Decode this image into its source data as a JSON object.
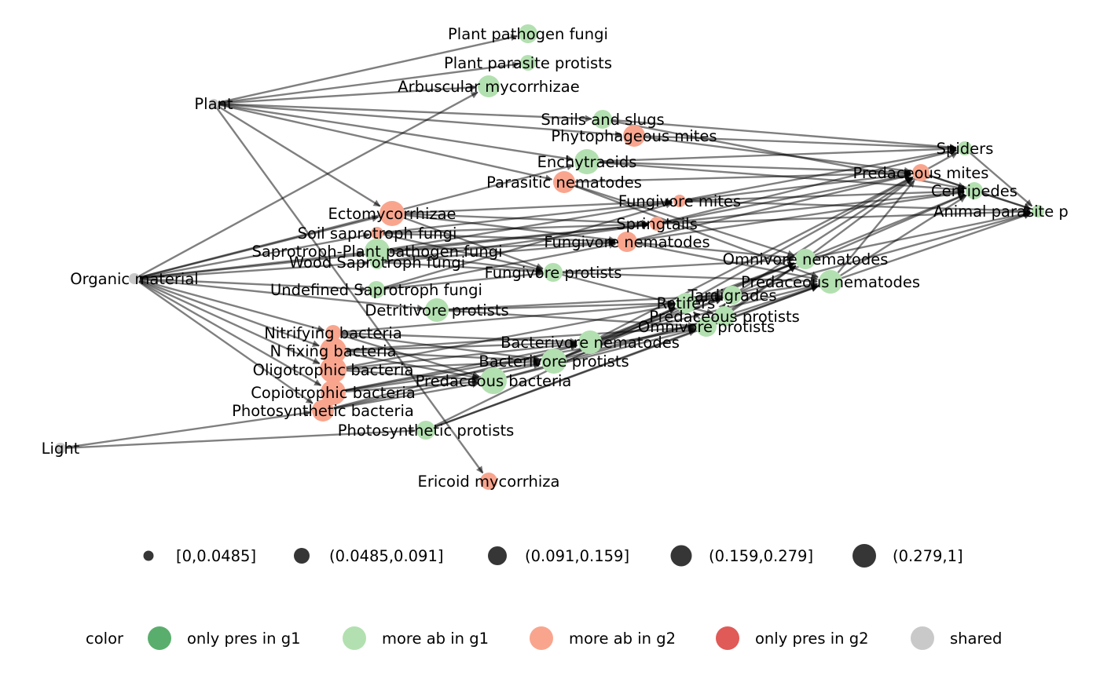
{
  "colors": {
    "edge": "#000000",
    "only_pres_g1": "#5aae6d",
    "more_ab_g1": "#b3e0b0",
    "more_ab_g2": "#f9a58e",
    "only_pres_g2": "#e05a57",
    "shared": "#c9c9c9",
    "size_legend": "#2b2b2b"
  },
  "nodes": [
    {
      "id": "plant_pathogen_fungi",
      "label": "Plant pathogen fungi",
      "group": "more_ab_g1"
    },
    {
      "id": "plant_parasite_protists",
      "label": "Plant parasite protists",
      "group": "more_ab_g1"
    },
    {
      "id": "arbuscular_mycorrhizae",
      "label": "Arbuscular mycorrhizae",
      "group": "more_ab_g1"
    },
    {
      "id": "plant",
      "label": "Plant",
      "group": "shared"
    },
    {
      "id": "snails_slugs",
      "label": "Snails and slugs",
      "group": "more_ab_g1"
    },
    {
      "id": "phytophageous_mites",
      "label": "Phytophageous mites",
      "group": "more_ab_g2"
    },
    {
      "id": "spiders",
      "label": "Spiders",
      "group": "more_ab_g1"
    },
    {
      "id": "enchytraeids",
      "label": "Enchytraeids",
      "group": "more_ab_g1"
    },
    {
      "id": "predaceous_mites",
      "label": "Predaceous mites",
      "group": "more_ab_g2"
    },
    {
      "id": "parasitic_nematodes",
      "label": "Parasitic nematodes",
      "group": "more_ab_g2"
    },
    {
      "id": "centipedes",
      "label": "Centipedes",
      "group": "more_ab_g1"
    },
    {
      "id": "fungivore_mites",
      "label": "Fungivore mites",
      "group": "more_ab_g2"
    },
    {
      "id": "animal_parasite",
      "label": "Animal parasite p",
      "group": "more_ab_g1"
    },
    {
      "id": "ectomycorrhizae",
      "label": "Ectomycorrhizae",
      "group": "more_ab_g2"
    },
    {
      "id": "springtails",
      "label": "Springtails",
      "group": "more_ab_g2"
    },
    {
      "id": "soil_saprotroph_fungi",
      "label": "Soil saprotroph fungi",
      "group": "more_ab_g2"
    },
    {
      "id": "fungivore_nematodes",
      "label": "Fungivore nematodes",
      "group": "more_ab_g2"
    },
    {
      "id": "saprotroph_plant_pathogen_fungi",
      "label": "Saprotroph-Plant pathogen fungi",
      "group": "more_ab_g1"
    },
    {
      "id": "omnivore_nematodes",
      "label": "Omnivore nematodes",
      "group": "more_ab_g1"
    },
    {
      "id": "wood_saprotroph_fungi",
      "label": "Wood Saprotroph fungi",
      "group": "more_ab_g1"
    },
    {
      "id": "fungivore_protists",
      "label": "Fungivore protists",
      "group": "more_ab_g1"
    },
    {
      "id": "organic_material",
      "label": "Organic material",
      "group": "shared"
    },
    {
      "id": "predaceous_nematodes",
      "label": "Predaceous nematodes",
      "group": "more_ab_g1"
    },
    {
      "id": "undefined_saprotroph_fungi",
      "label": "Undefined Saprotroph fungi",
      "group": "more_ab_g1"
    },
    {
      "id": "tardigrades",
      "label": "Tardigrades",
      "group": "more_ab_g1"
    },
    {
      "id": "rotifers",
      "label": "Rotifers",
      "group": "more_ab_g1"
    },
    {
      "id": "detritivore_protists",
      "label": "Detritivore protists",
      "group": "more_ab_g1"
    },
    {
      "id": "predaceous_protists",
      "label": "Predaceous protists",
      "group": "more_ab_g1"
    },
    {
      "id": "omnivore_protists",
      "label": "Omnivore protists",
      "group": "more_ab_g1"
    },
    {
      "id": "nitrifying_bacteria",
      "label": "Nitrifying bacteria",
      "group": "more_ab_g2"
    },
    {
      "id": "bacterivore_nematodes",
      "label": "Bacterivore nematodes",
      "group": "more_ab_g1"
    },
    {
      "id": "n_fixing_bacteria",
      "label": "N fixing bacteria",
      "group": "more_ab_g2"
    },
    {
      "id": "bacterivore_protists",
      "label": "Bacterivore protists",
      "group": "more_ab_g1"
    },
    {
      "id": "oligotrophic_bacteria",
      "label": "Oligotrophic bacteria",
      "group": "more_ab_g2"
    },
    {
      "id": "predaceous_bacteria",
      "label": "Predaceous bacteria",
      "group": "more_ab_g1"
    },
    {
      "id": "copiotrophic_bacteria",
      "label": "Copiotrophic bacteria",
      "group": "more_ab_g2"
    },
    {
      "id": "photosynthetic_bacteria",
      "label": "Photosynthetic bacteria",
      "group": "more_ab_g2"
    },
    {
      "id": "photosynthetic_protists",
      "label": "Photosynthetic protists",
      "group": "more_ab_g1"
    },
    {
      "id": "light",
      "label": "Light",
      "group": "shared"
    },
    {
      "id": "ericoid_mycorrhiza",
      "label": "Ericoid mycorrhiza",
      "group": "more_ab_g2"
    }
  ],
  "edges": [
    [
      "plant",
      "plant_pathogen_fungi"
    ],
    [
      "plant",
      "plant_parasite_protists"
    ],
    [
      "plant",
      "arbuscular_mycorrhizae"
    ],
    [
      "plant",
      "snails_slugs"
    ],
    [
      "plant",
      "phytophageous_mites"
    ],
    [
      "plant",
      "parasitic_nematodes"
    ],
    [
      "plant",
      "ectomycorrhizae"
    ],
    [
      "plant",
      "ericoid_mycorrhiza"
    ],
    [
      "plant",
      "enchytraeids"
    ],
    [
      "organic_material",
      "arbuscular_mycorrhizae"
    ],
    [
      "organic_material",
      "enchytraeids"
    ],
    [
      "organic_material",
      "ectomycorrhizae"
    ],
    [
      "organic_material",
      "soil_saprotroph_fungi"
    ],
    [
      "organic_material",
      "saprotroph_plant_pathogen_fungi"
    ],
    [
      "organic_material",
      "wood_saprotroph_fungi"
    ],
    [
      "organic_material",
      "undefined_saprotroph_fungi"
    ],
    [
      "organic_material",
      "detritivore_protists"
    ],
    [
      "organic_material",
      "nitrifying_bacteria"
    ],
    [
      "organic_material",
      "n_fixing_bacteria"
    ],
    [
      "organic_material",
      "oligotrophic_bacteria"
    ],
    [
      "organic_material",
      "copiotrophic_bacteria"
    ],
    [
      "organic_material",
      "photosynthetic_bacteria"
    ],
    [
      "organic_material",
      "springtails"
    ],
    [
      "light",
      "photosynthetic_bacteria"
    ],
    [
      "light",
      "photosynthetic_protists"
    ],
    [
      "ectomycorrhizae",
      "fungivore_mites"
    ],
    [
      "ectomycorrhizae",
      "springtails"
    ],
    [
      "ectomycorrhizae",
      "fungivore_nematodes"
    ],
    [
      "ectomycorrhizae",
      "fungivore_protists"
    ],
    [
      "soil_saprotroph_fungi",
      "fungivore_mites"
    ],
    [
      "soil_saprotroph_fungi",
      "springtails"
    ],
    [
      "soil_saprotroph_fungi",
      "fungivore_nematodes"
    ],
    [
      "soil_saprotroph_fungi",
      "fungivore_protists"
    ],
    [
      "saprotroph_plant_pathogen_fungi",
      "springtails"
    ],
    [
      "saprotroph_plant_pathogen_fungi",
      "fungivore_nematodes"
    ],
    [
      "saprotroph_plant_pathogen_fungi",
      "fungivore_protists"
    ],
    [
      "saprotroph_plant_pathogen_fungi",
      "fungivore_mites"
    ],
    [
      "wood_saprotroph_fungi",
      "fungivore_nematodes"
    ],
    [
      "wood_saprotroph_fungi",
      "fungivore_protists"
    ],
    [
      "wood_saprotroph_fungi",
      "springtails"
    ],
    [
      "undefined_saprotroph_fungi",
      "fungivore_nematodes"
    ],
    [
      "undefined_saprotroph_fungi",
      "fungivore_protists"
    ],
    [
      "undefined_saprotroph_fungi",
      "fungivore_mites"
    ],
    [
      "nitrifying_bacteria",
      "bacterivore_nematodes"
    ],
    [
      "nitrifying_bacteria",
      "bacterivore_protists"
    ],
    [
      "nitrifying_bacteria",
      "predaceous_bacteria"
    ],
    [
      "nitrifying_bacteria",
      "rotifers"
    ],
    [
      "n_fixing_bacteria",
      "bacterivore_nematodes"
    ],
    [
      "n_fixing_bacteria",
      "bacterivore_protists"
    ],
    [
      "n_fixing_bacteria",
      "predaceous_bacteria"
    ],
    [
      "n_fixing_bacteria",
      "omnivore_protists"
    ],
    [
      "oligotrophic_bacteria",
      "bacterivore_nematodes"
    ],
    [
      "oligotrophic_bacteria",
      "bacterivore_protists"
    ],
    [
      "oligotrophic_bacteria",
      "predaceous_bacteria"
    ],
    [
      "oligotrophic_bacteria",
      "rotifers"
    ],
    [
      "copiotrophic_bacteria",
      "bacterivore_nematodes"
    ],
    [
      "copiotrophic_bacteria",
      "bacterivore_protists"
    ],
    [
      "copiotrophic_bacteria",
      "predaceous_bacteria"
    ],
    [
      "copiotrophic_bacteria",
      "omnivore_protists"
    ],
    [
      "photosynthetic_bacteria",
      "bacterivore_nematodes"
    ],
    [
      "photosynthetic_bacteria",
      "bacterivore_protists"
    ],
    [
      "photosynthetic_bacteria",
      "predaceous_bacteria"
    ],
    [
      "photosynthetic_protists",
      "omnivore_protists"
    ],
    [
      "photosynthetic_protists",
      "rotifers"
    ],
    [
      "photosynthetic_protists",
      "predaceous_nematodes"
    ],
    [
      "detritivore_protists",
      "omnivore_protists"
    ],
    [
      "detritivore_protists",
      "rotifers"
    ],
    [
      "detritivore_protists",
      "tardigrades"
    ],
    [
      "bacterivore_nematodes",
      "predaceous_nematodes"
    ],
    [
      "bacterivore_nematodes",
      "omnivore_nematodes"
    ],
    [
      "bacterivore_nematodes",
      "predaceous_mites"
    ],
    [
      "bacterivore_nematodes",
      "tardigrades"
    ],
    [
      "bacterivore_protists",
      "rotifers"
    ],
    [
      "bacterivore_protists",
      "tardigrades"
    ],
    [
      "bacterivore_protists",
      "omnivore_nematodes"
    ],
    [
      "bacterivore_protists",
      "predaceous_protists"
    ],
    [
      "predaceous_bacteria",
      "predaceous_protists"
    ],
    [
      "predaceous_bacteria",
      "omnivore_protists"
    ],
    [
      "fungivore_protists",
      "omnivore_nematodes"
    ],
    [
      "fungivore_protists",
      "predaceous_nematodes"
    ],
    [
      "fungivore_protists",
      "predaceous_protists"
    ],
    [
      "fungivore_nematodes",
      "predaceous_mites"
    ],
    [
      "fungivore_nematodes",
      "omnivore_nematodes"
    ],
    [
      "fungivore_nematodes",
      "predaceous_nematodes"
    ],
    [
      "fungivore_nematodes",
      "centipedes"
    ],
    [
      "springtails",
      "predaceous_mites"
    ],
    [
      "springtails",
      "spiders"
    ],
    [
      "springtails",
      "centipedes"
    ],
    [
      "fungivore_mites",
      "predaceous_mites"
    ],
    [
      "fungivore_mites",
      "centipedes"
    ],
    [
      "fungivore_mites",
      "spiders"
    ],
    [
      "enchytraeids",
      "predaceous_mites"
    ],
    [
      "enchytraeids",
      "centipedes"
    ],
    [
      "enchytraeids",
      "spiders"
    ],
    [
      "parasitic_nematodes",
      "predaceous_mites"
    ],
    [
      "parasitic_nematodes",
      "omnivore_nematodes"
    ],
    [
      "parasitic_nematodes",
      "predaceous_nematodes"
    ],
    [
      "snails_slugs",
      "spiders"
    ],
    [
      "snails_slugs",
      "centipedes"
    ],
    [
      "phytophageous_mites",
      "predaceous_mites"
    ],
    [
      "phytophageous_mites",
      "spiders"
    ],
    [
      "omnivore_nematodes",
      "predaceous_mites"
    ],
    [
      "omnivore_nematodes",
      "centipedes"
    ],
    [
      "omnivore_nematodes",
      "animal_parasite"
    ],
    [
      "predaceous_nematodes",
      "predaceous_mites"
    ],
    [
      "predaceous_nematodes",
      "centipedes"
    ],
    [
      "predaceous_nematodes",
      "animal_parasite"
    ],
    [
      "rotifers",
      "predaceous_mites"
    ],
    [
      "rotifers",
      "tardigrades"
    ],
    [
      "rotifers",
      "omnivore_nematodes"
    ],
    [
      "rotifers",
      "predaceous_nematodes"
    ],
    [
      "tardigrades",
      "predaceous_mites"
    ],
    [
      "tardigrades",
      "centipedes"
    ],
    [
      "tardigrades",
      "animal_parasite"
    ],
    [
      "predaceous_protists",
      "omnivore_nematodes"
    ],
    [
      "predaceous_protists",
      "predaceous_nematodes"
    ],
    [
      "predaceous_protists",
      "tardigrades"
    ],
    [
      "omnivore_protists",
      "predaceous_nematodes"
    ],
    [
      "omnivore_protists",
      "omnivore_nematodes"
    ],
    [
      "omnivore_protists",
      "rotifers"
    ],
    [
      "omnivore_protists",
      "tardigrades"
    ],
    [
      "predaceous_mites",
      "spiders"
    ],
    [
      "predaceous_mites",
      "centipedes"
    ],
    [
      "centipedes",
      "animal_parasite"
    ],
    [
      "spiders",
      "animal_parasite"
    ],
    [
      "predaceous_mites",
      "animal_parasite"
    ],
    [
      "fungivore_mites",
      "animal_parasite"
    ],
    [
      "springtails",
      "animal_parasite"
    ]
  ],
  "size_legend": {
    "items": [
      "[0,0.0485]",
      "(0.0485,0.091]",
      "(0.091,0.159]",
      "(0.159,0.279]",
      "(0.279,1]"
    ]
  },
  "color_legend": {
    "title": "color",
    "items": [
      {
        "key": "only_pres_g1",
        "label": "only pres in g1"
      },
      {
        "key": "more_ab_g1",
        "label": "more ab in g1"
      },
      {
        "key": "more_ab_g2",
        "label": "more ab in g2"
      },
      {
        "key": "only_pres_g2",
        "label": "only pres in g2"
      },
      {
        "key": "shared",
        "label": "shared"
      }
    ]
  }
}
